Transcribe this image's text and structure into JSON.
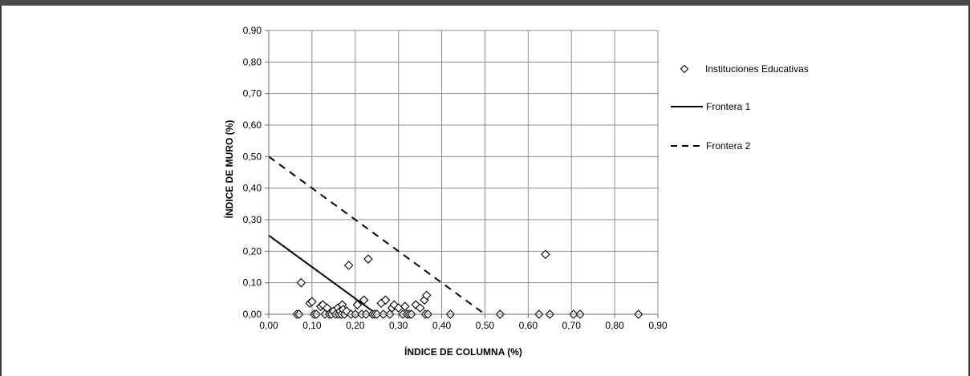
{
  "chart_data": {
    "type": "scatter",
    "title": "",
    "xlabel": "ÍNDICE DE COLUMNA (%)",
    "ylabel": "ÍNDICE DE MURO (%)",
    "xlim": [
      0,
      0.9
    ],
    "ylim": [
      0,
      0.9
    ],
    "xticks": [
      "0,00",
      "0,10",
      "0,20",
      "0,30",
      "0,40",
      "0,50",
      "0,60",
      "0,70",
      "0,80",
      "0,90"
    ],
    "yticks": [
      "0,00",
      "0,10",
      "0,20",
      "0,30",
      "0,40",
      "0,50",
      "0,60",
      "0,70",
      "0,80",
      "0,90"
    ],
    "grid": true,
    "legend_position": "right",
    "series": [
      {
        "name": "Instituciones Educativas",
        "kind": "scatter",
        "marker": "diamond",
        "color": "#000000",
        "points": [
          [
            0.065,
            0.0
          ],
          [
            0.07,
            0.0
          ],
          [
            0.075,
            0.1
          ],
          [
            0.095,
            0.035
          ],
          [
            0.1,
            0.04
          ],
          [
            0.105,
            0.0
          ],
          [
            0.11,
            0.0
          ],
          [
            0.12,
            0.025
          ],
          [
            0.125,
            0.03
          ],
          [
            0.13,
            0.0
          ],
          [
            0.135,
            0.02
          ],
          [
            0.14,
            0.0
          ],
          [
            0.145,
            0.0
          ],
          [
            0.15,
            0.01
          ],
          [
            0.155,
            0.0
          ],
          [
            0.16,
            0.02
          ],
          [
            0.162,
            0.0
          ],
          [
            0.165,
            0.01
          ],
          [
            0.168,
            0.0
          ],
          [
            0.17,
            0.03
          ],
          [
            0.172,
            0.015
          ],
          [
            0.175,
            0.0
          ],
          [
            0.18,
            0.01
          ],
          [
            0.185,
            0.155
          ],
          [
            0.19,
            0.0
          ],
          [
            0.2,
            0.0
          ],
          [
            0.205,
            0.03
          ],
          [
            0.215,
            0.0
          ],
          [
            0.22,
            0.045
          ],
          [
            0.225,
            0.0
          ],
          [
            0.23,
            0.175
          ],
          [
            0.24,
            0.0
          ],
          [
            0.245,
            0.0
          ],
          [
            0.25,
            0.0
          ],
          [
            0.26,
            0.035
          ],
          [
            0.265,
            0.0
          ],
          [
            0.27,
            0.045
          ],
          [
            0.28,
            0.0
          ],
          [
            0.285,
            0.02
          ],
          [
            0.29,
            0.03
          ],
          [
            0.3,
            0.02
          ],
          [
            0.31,
            0.0
          ],
          [
            0.315,
            0.025
          ],
          [
            0.32,
            0.0
          ],
          [
            0.325,
            0.0
          ],
          [
            0.33,
            0.0
          ],
          [
            0.34,
            0.03
          ],
          [
            0.35,
            0.02
          ],
          [
            0.36,
            0.045
          ],
          [
            0.362,
            0.0
          ],
          [
            0.365,
            0.06
          ],
          [
            0.368,
            0.0
          ],
          [
            0.42,
            0.0
          ],
          [
            0.535,
            0.0
          ],
          [
            0.625,
            0.0
          ],
          [
            0.64,
            0.19
          ],
          [
            0.65,
            0.0
          ],
          [
            0.705,
            0.0
          ],
          [
            0.72,
            0.0
          ],
          [
            0.855,
            0.0
          ]
        ]
      },
      {
        "name": "Frontera 1",
        "kind": "line",
        "style": "solid",
        "color": "#000000",
        "points": [
          [
            0.0,
            0.25
          ],
          [
            0.25,
            0.0
          ]
        ]
      },
      {
        "name": "Frontera 2",
        "kind": "line",
        "style": "dashed",
        "color": "#000000",
        "points": [
          [
            0.0,
            0.5
          ],
          [
            0.5,
            0.0
          ]
        ]
      }
    ]
  }
}
